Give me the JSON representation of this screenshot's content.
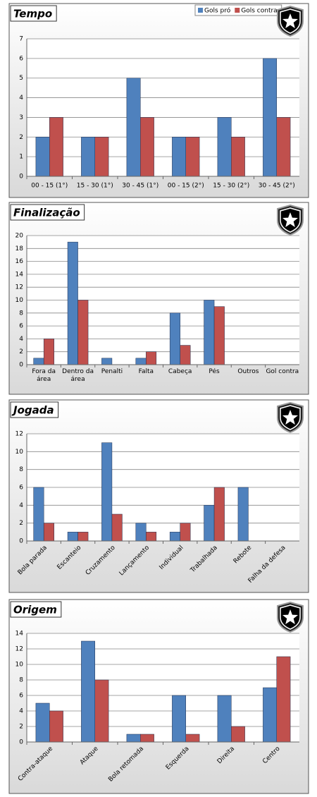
{
  "chart_data": [
    {
      "type": "bar",
      "title": "Tempo",
      "categories": [
        "00 - 15 (1°)",
        "15 - 30 (1°)",
        "30 - 45 (1°)",
        "00 - 15 (2°)",
        "15 - 30 (2°)",
        "30 - 45 (2°)"
      ],
      "series": [
        {
          "name": "Gols pró",
          "color": "#4f81bd",
          "values": [
            2,
            2,
            5,
            2,
            3,
            6
          ]
        },
        {
          "name": "Gols contra",
          "color": "#c0504d",
          "values": [
            3,
            2,
            3,
            2,
            2,
            3
          ]
        }
      ],
      "ylim": [
        0,
        7
      ],
      "yticks": [
        0,
        1,
        2,
        3,
        4,
        5,
        6,
        7
      ],
      "grid": true,
      "legend": "top-right"
    },
    {
      "type": "bar",
      "title": "Finalização",
      "categories": [
        "Fora da área",
        "Dentro da área",
        "Penalti",
        "Falta",
        "Cabeça",
        "Pés",
        "Outros",
        "Gol contra"
      ],
      "series": [
        {
          "color": "#4f81bd",
          "values": [
            1,
            19,
            1,
            1,
            8,
            10,
            0,
            0
          ]
        },
        {
          "color": "#c0504d",
          "values": [
            4,
            10,
            0,
            2,
            3,
            9,
            0,
            0
          ]
        }
      ],
      "ylim": [
        0,
        20
      ],
      "yticks": [
        0,
        2,
        4,
        6,
        8,
        10,
        12,
        14,
        16,
        18,
        20
      ],
      "grid": true
    },
    {
      "type": "bar",
      "title": "Jogada",
      "categories": [
        "Bola parada",
        "Escanteio",
        "Cruzamento",
        "Lançamento",
        "Individual",
        "Trabalhada",
        "Rebote",
        "Falha da defesa"
      ],
      "series": [
        {
          "color": "#4f81bd",
          "values": [
            6,
            1,
            11,
            2,
            1,
            4,
            6,
            0
          ]
        },
        {
          "color": "#c0504d",
          "values": [
            2,
            1,
            3,
            1,
            2,
            6,
            0,
            0
          ]
        }
      ],
      "ylim": [
        0,
        12
      ],
      "yticks": [
        0,
        2,
        4,
        6,
        8,
        10,
        12
      ],
      "grid": true
    },
    {
      "type": "bar",
      "title": "Origem",
      "categories": [
        "Contra-ataque",
        "Ataque",
        "Bola retomada",
        "Esquerda",
        "Direita",
        "Centro"
      ],
      "series": [
        {
          "color": "#4f81bd",
          "values": [
            5,
            13,
            1,
            6,
            6,
            7
          ]
        },
        {
          "color": "#c0504d",
          "values": [
            4,
            8,
            1,
            1,
            2,
            11
          ]
        }
      ],
      "ylim": [
        0,
        14
      ],
      "yticks": [
        0,
        2,
        4,
        6,
        8,
        10,
        12,
        14
      ],
      "grid": true
    }
  ]
}
